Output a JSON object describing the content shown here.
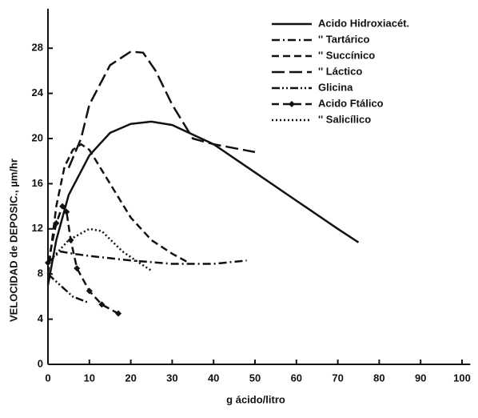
{
  "chart_data": {
    "type": "line",
    "xlabel": "g ácido/litro",
    "ylabel": "VELOCIDAD de DEPOSIC., µm/hr",
    "xlim": [
      0,
      102
    ],
    "ylim": [
      0,
      31.5
    ],
    "xticks": [
      0,
      10,
      20,
      30,
      40,
      50,
      60,
      70,
      80,
      90,
      100
    ],
    "yticks": [
      0,
      4,
      8,
      12,
      16,
      20,
      24,
      28
    ],
    "legend": "upper right",
    "series": [
      {
        "name": "Acido Hidroxiacét.",
        "color": "#111",
        "dash": "solid",
        "x": [
          0,
          2,
          5,
          10,
          15,
          20,
          25,
          30,
          40,
          50,
          60,
          70,
          75
        ],
        "values": [
          7,
          11,
          15,
          18.5,
          20.5,
          21.3,
          21.5,
          21.2,
          19.5,
          17,
          14.5,
          12,
          10.8
        ]
      },
      {
        "name": "'' Tartárico",
        "color": "#111",
        "dash": "dashdot",
        "x": [
          0,
          3,
          6,
          10,
          20,
          30,
          40,
          48
        ],
        "values": [
          9,
          10,
          9.8,
          9.6,
          9.2,
          8.9,
          8.9,
          9.2
        ]
      },
      {
        "name": "'' Succínico",
        "color": "#111",
        "dash": "dashed",
        "x": [
          0,
          2,
          4,
          6,
          8,
          10,
          15,
          20,
          25,
          30,
          34
        ],
        "values": [
          8,
          14,
          17.5,
          19,
          19.5,
          19,
          16,
          13,
          11,
          9.8,
          9
        ]
      },
      {
        "name": "'' Láctico",
        "color": "#111",
        "dash": "longdash",
        "x": [
          5,
          8,
          10,
          15,
          20,
          23,
          26,
          30,
          35,
          40,
          50
        ],
        "values": [
          17.4,
          20,
          23,
          26.5,
          27.7,
          27.6,
          26,
          23,
          20,
          19.5,
          18.8
        ]
      },
      {
        "name": "Glicina",
        "color": "#111",
        "dash": "dashdotdot",
        "x": [
          0,
          3,
          6,
          9.5
        ],
        "values": [
          8,
          7,
          6,
          5.5
        ]
      },
      {
        "name": "Acido Ftálico",
        "color": "#111",
        "dash": "dashed",
        "marker": "diamond",
        "x": [
          0,
          2,
          3.5,
          4.5,
          5.5,
          7,
          10,
          13,
          17
        ],
        "values": [
          9,
          12.5,
          14,
          13.5,
          11,
          8.5,
          6.5,
          5.3,
          4.5
        ]
      },
      {
        "name": "'' Salicílico",
        "color": "#111",
        "dash": "dotted",
        "x": [
          0,
          5,
          10,
          13,
          18,
          22,
          25
        ],
        "values": [
          9,
          11,
          12,
          11.8,
          10,
          9,
          8.3
        ]
      }
    ]
  }
}
